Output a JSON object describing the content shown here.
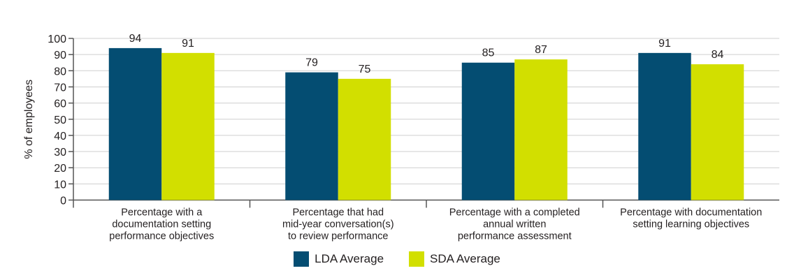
{
  "chart_data": {
    "type": "bar",
    "categories": [
      [
        "Percentage with a",
        "documentation setting",
        "performance objectives"
      ],
      [
        "Percentage that had",
        "mid-year conversation(s)",
        "to review performance"
      ],
      [
        "Percentage with a completed",
        "annual written",
        "performance assessment"
      ],
      [
        "Percentage with documentation",
        "setting learning objectives"
      ]
    ],
    "series": [
      {
        "name": "LDA Average",
        "color": "#044d72",
        "values": [
          94,
          79,
          85,
          91
        ]
      },
      {
        "name": "SDA Average",
        "color": "#d2df00",
        "values": [
          91,
          75,
          87,
          84
        ]
      }
    ],
    "ylabel": "% of employees",
    "ylim": [
      0,
      100
    ],
    "yticks": [
      0,
      10,
      20,
      30,
      40,
      50,
      60,
      70,
      80,
      90,
      100
    ],
    "grid": true,
    "legend": "bottom-center"
  }
}
